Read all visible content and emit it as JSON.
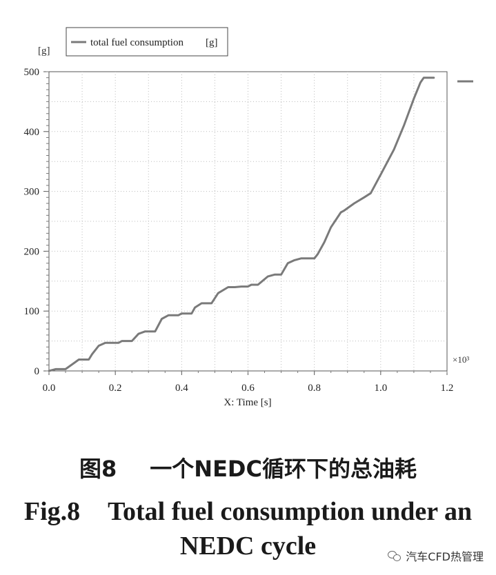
{
  "chart_data": {
    "type": "line",
    "legend": {
      "label": "total fuel consumption",
      "unit": "[g]",
      "placement": "top-left"
    },
    "y_unit_label": "[g]",
    "xlabel": "X: Time  [s]",
    "x_multiplier": "×10³",
    "xlim": [
      0,
      1.2
    ],
    "ylim": [
      0,
      500
    ],
    "x_ticks": [
      "0.0",
      "0.2",
      "0.4",
      "0.6",
      "0.8",
      "1.0",
      "1.2"
    ],
    "y_ticks": [
      "0",
      "100",
      "200",
      "300",
      "400",
      "500"
    ],
    "grid": true,
    "series": [
      {
        "color": "#7a7a7a",
        "x": [
          0.0,
          0.02,
          0.05,
          0.08,
          0.09,
          0.12,
          0.13,
          0.15,
          0.17,
          0.21,
          0.22,
          0.25,
          0.27,
          0.29,
          0.32,
          0.34,
          0.36,
          0.39,
          0.4,
          0.43,
          0.44,
          0.46,
          0.49,
          0.51,
          0.54,
          0.56,
          0.58,
          0.6,
          0.61,
          0.63,
          0.66,
          0.68,
          0.7,
          0.72,
          0.74,
          0.76,
          0.78,
          0.8,
          0.81,
          0.83,
          0.85,
          0.88,
          0.89,
          0.92,
          0.95,
          0.97,
          1.0,
          1.04,
          1.07,
          1.1,
          1.12,
          1.13,
          1.16
        ],
        "y": [
          0,
          3,
          3,
          15,
          19,
          19,
          28,
          42,
          47,
          47,
          50,
          50,
          62,
          66,
          66,
          87,
          93,
          93,
          96,
          96,
          106,
          113,
          113,
          130,
          140,
          140,
          141,
          141,
          144,
          144,
          158,
          161,
          161,
          180,
          185,
          188,
          188,
          188,
          195,
          215,
          240,
          265,
          268,
          280,
          290,
          297,
          328,
          370,
          410,
          455,
          482,
          490,
          490
        ]
      }
    ]
  },
  "caption": {
    "cn_label": "图8",
    "cn_text": "一个NEDC循环下的总油耗",
    "en_label": "Fig.8",
    "en_text_line1": "Total fuel consumption under an",
    "en_text_line2": "NEDC cycle"
  },
  "watermark": {
    "text": "汽车CFD热管理",
    "icon": "wechat-icon"
  }
}
